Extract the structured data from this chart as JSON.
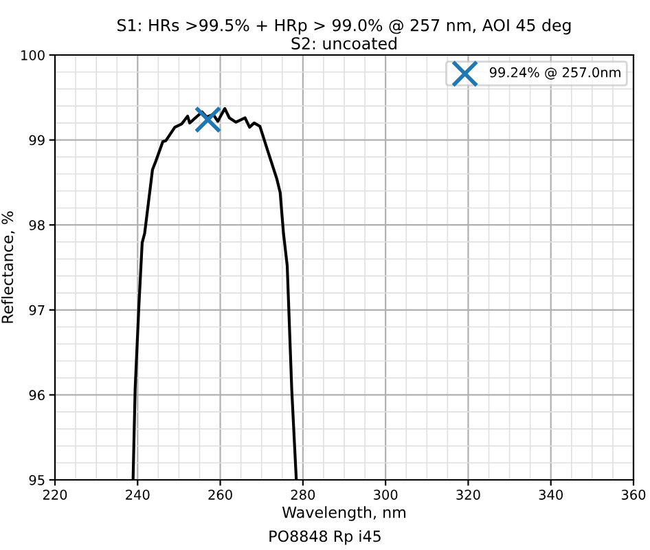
{
  "chart_data": {
    "type": "line",
    "title": "S1: HRs >99.5% + HRp > 99.0% @ 257 nm, AOI 45 deg\nS2: uncoated",
    "xlabel": "Wavelength, nm",
    "ylabel": "Reflectance, %",
    "xlim": [
      220,
      360
    ],
    "xticks": [
      220,
      240,
      260,
      280,
      300,
      320,
      340,
      360
    ],
    "ylim": [
      95,
      100
    ],
    "yticks": [
      95,
      96,
      97,
      98,
      99,
      100
    ],
    "grid": true,
    "legend": "top right",
    "series": [
      {
        "color": "#000000",
        "marker": "none",
        "x": [
          238.9,
          239.4,
          240.3,
          241.1,
          241.7,
          243.6,
          244.4,
          246.1,
          246.8,
          249.0,
          250.7,
          252.1,
          252.6,
          255.6,
          256.7,
          258.3,
          259.4,
          261.1,
          262.2,
          263.8,
          266.0,
          267.1,
          268.2,
          269.6,
          271.5,
          273.7,
          274.5,
          275.3,
          276.2,
          277.3,
          278.4
        ],
        "values": [
          95.0,
          96.07,
          97.04,
          97.79,
          97.9,
          98.65,
          98.75,
          98.98,
          98.99,
          99.15,
          99.19,
          99.28,
          99.2,
          99.33,
          99.27,
          99.3,
          99.22,
          99.37,
          99.26,
          99.21,
          99.26,
          99.15,
          99.2,
          99.16,
          98.87,
          98.54,
          98.38,
          97.9,
          97.52,
          96.06,
          95.0
        ]
      },
      {
        "type": "scatter",
        "name": "99.24% @ 257.0nm",
        "color": "#1f77b4",
        "marker": "cross",
        "x": [
          257.0
        ],
        "values": [
          99.24
        ]
      }
    ],
    "annotations": [
      "PO8848 Rp i45"
    ]
  }
}
